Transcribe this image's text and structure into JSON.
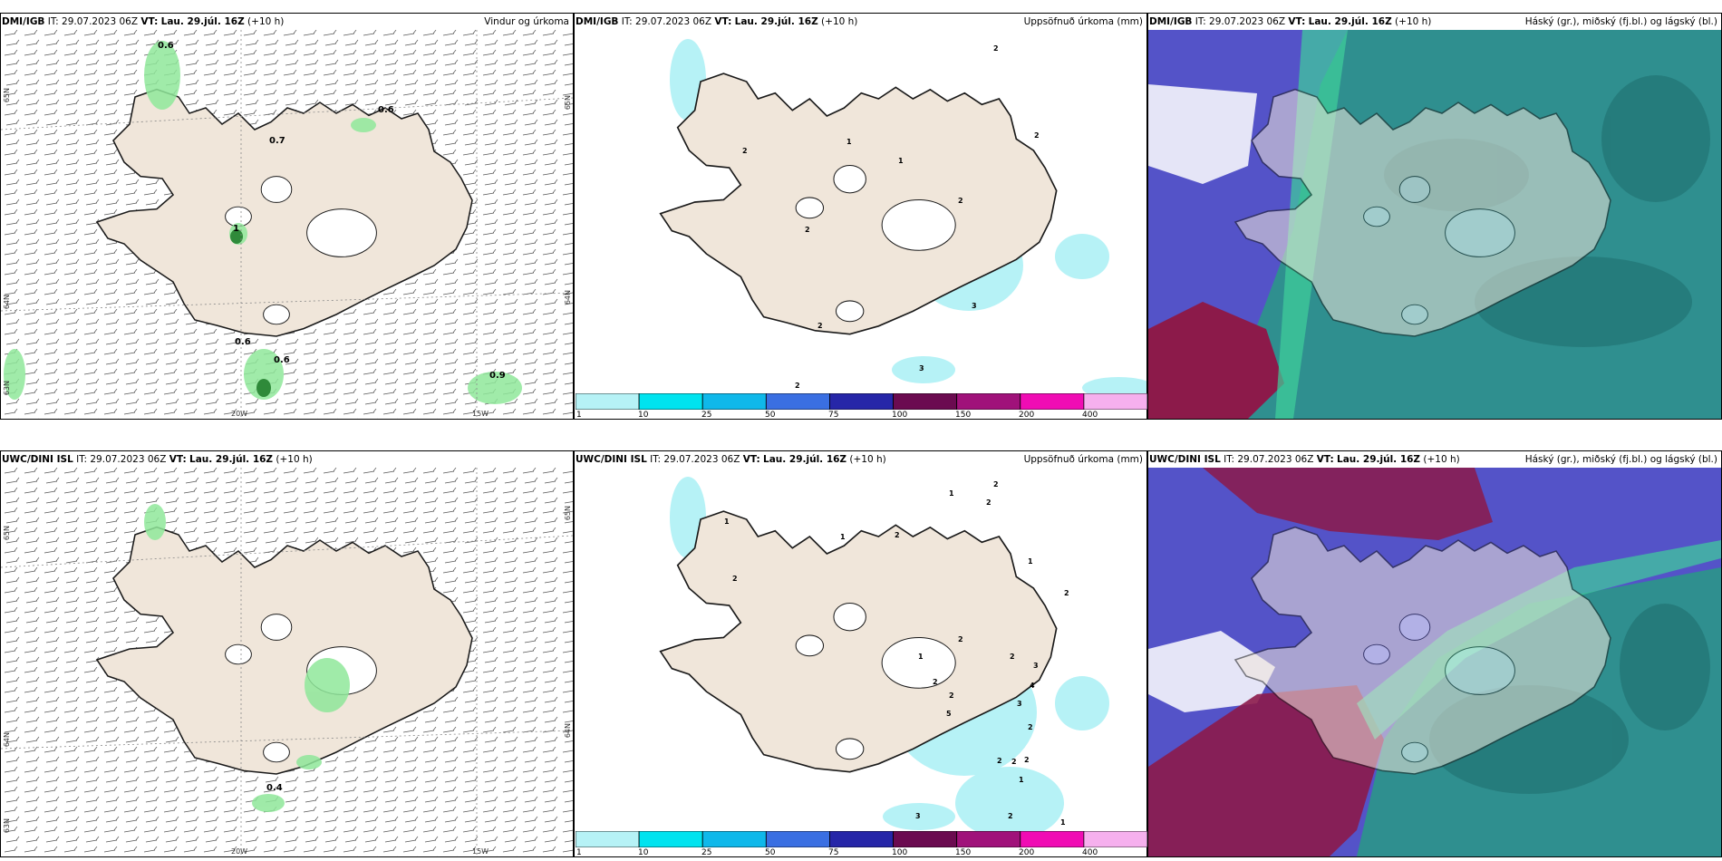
{
  "colors": {
    "land": "#f0e6da",
    "precip_light": "#b6f2f6",
    "rain_green": "#8fe79a",
    "rain_dark": "#2f8a3a",
    "cloud_high": "#2f8f8f",
    "cloud_mid": "#5453c8",
    "cloud_low": "#8c1a4a"
  },
  "panels": {
    "top_left": {
      "model": "DMI/IGB",
      "it_label": "IT:",
      "it_value": "29.07.2023 06Z",
      "vt_label": "VT:",
      "vt_value": "Lau. 29.júl. 16Z",
      "offset": "(+10 h)",
      "product": "Vindur og úrkoma",
      "values": [
        "0.6",
        "0.6",
        "0.7",
        "1",
        "0.6",
        "0.6",
        "0.9"
      ]
    },
    "top_mid": {
      "model": "DMI/IGB",
      "it_label": "IT:",
      "it_value": "29.07.2023 06Z",
      "vt_label": "VT:",
      "vt_value": "Lau. 29.júl. 16Z",
      "offset": "(+10 h)",
      "product": "Uppsöfnuð úrkoma (mm)",
      "values": [
        "2",
        "2",
        "2",
        "1",
        "1",
        "2",
        "2",
        "3",
        "2",
        "2",
        "3"
      ]
    },
    "top_right": {
      "model": "DMI/IGB",
      "it_label": "IT:",
      "it_value": "29.07.2023 06Z",
      "vt_label": "VT:",
      "vt_value": "Lau. 29.júl. 16Z",
      "offset": "(+10 h)",
      "product": "Háský (gr.), miðský (fj.bl.) og lágský (bl.)"
    },
    "bot_left": {
      "model": "UWC/DINI ISL",
      "it_label": "IT:",
      "it_value": "29.07.2023 06Z",
      "vt_label": "VT:",
      "vt_value": "Lau. 29.júl. 16Z",
      "offset": "(+10 h)",
      "product": "",
      "values": [
        "0.4"
      ]
    },
    "bot_mid": {
      "model": "UWC/DINI ISL",
      "it_label": "IT:",
      "it_value": "29.07.2023 06Z",
      "vt_label": "VT:",
      "vt_value": "Lau. 29.júl. 16Z",
      "offset": "(+10 h)",
      "product": "Uppsöfnuð úrkoma (mm)",
      "values": [
        "2",
        "2",
        "1",
        "1",
        "2",
        "1",
        "2",
        "1",
        "2",
        "2",
        "1",
        "2",
        "3",
        "2",
        "2",
        "5",
        "3",
        "4",
        "2",
        "2",
        "2",
        "2",
        "1",
        "3",
        "2",
        "1"
      ]
    },
    "bot_right": {
      "model": "UWC/DINI ISL",
      "it_label": "IT:",
      "it_value": "29.07.2023 06Z",
      "vt_label": "VT:",
      "vt_value": "Lau. 29.júl. 16Z",
      "offset": "(+10 h)",
      "product": "Háský (gr.), miðský (fj.bl.) og lágský (bl.)"
    }
  },
  "axes": {
    "lat_ticks": [
      "65N",
      "64N",
      "63N"
    ],
    "lon_ticks": [
      "20W",
      "15W"
    ]
  },
  "colorbar": {
    "labels": [
      "1",
      "10",
      "25",
      "50",
      "75",
      "100",
      "150",
      "200",
      "400"
    ],
    "colors": [
      "#b6f2f6",
      "#00e3ef",
      "#0fb8ea",
      "#3a6fe2",
      "#2626a8",
      "#6b0b50",
      "#a0127a",
      "#f00cb4",
      "#f6b0ee"
    ]
  }
}
